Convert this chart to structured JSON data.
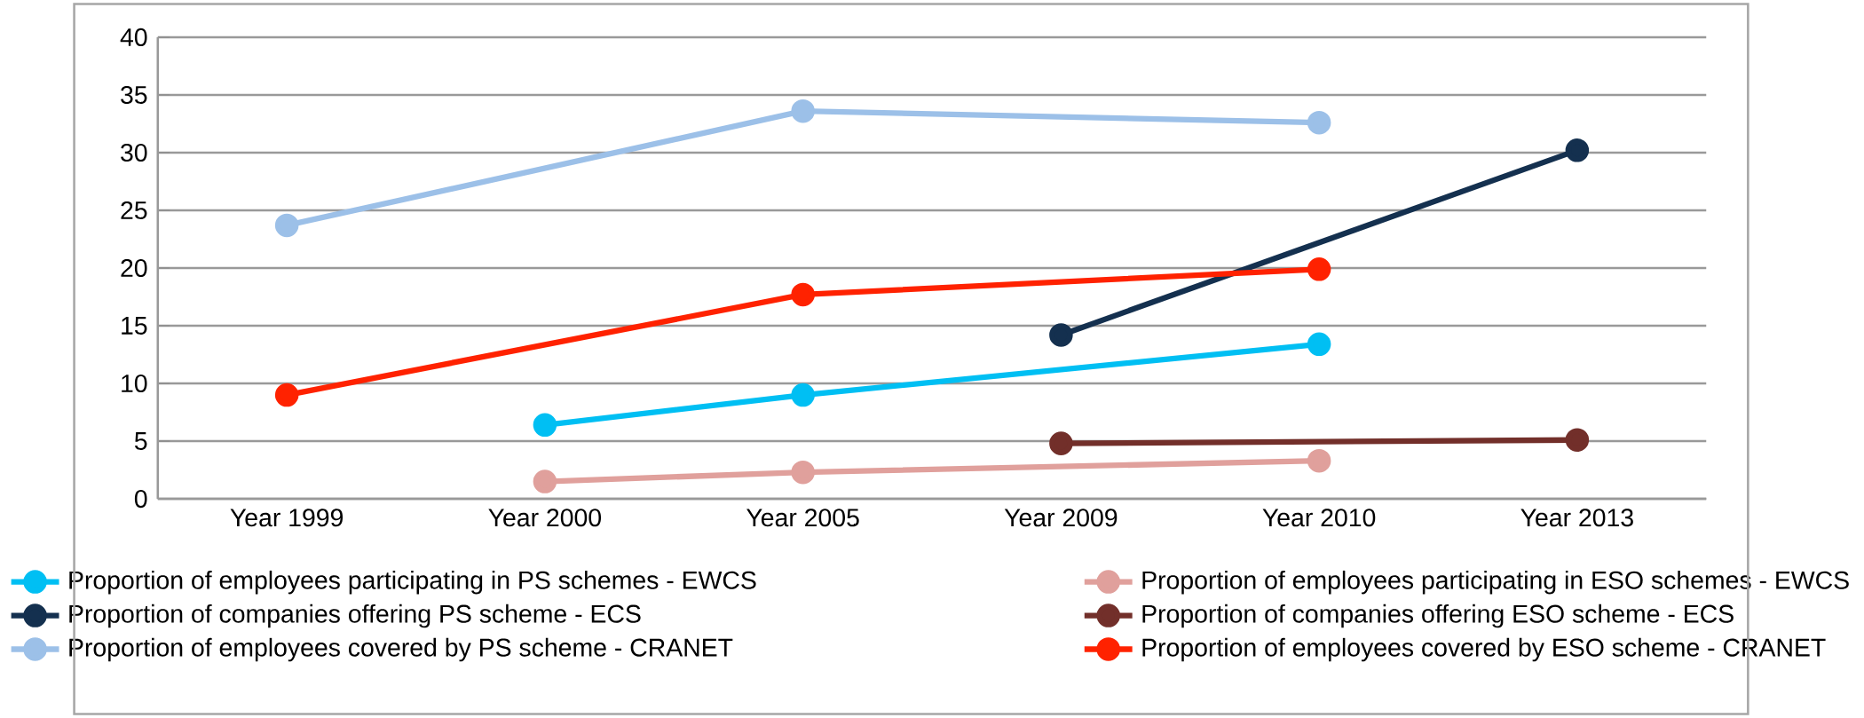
{
  "chart_data": {
    "type": "line",
    "categories": [
      "Year 1999",
      "Year 2000",
      "Year 2005",
      "Year 2009",
      "Year 2010",
      "Year 2013"
    ],
    "series": [
      {
        "name": "Proportion of employees participating in PS schemes - EWCS",
        "color": "#00bff3",
        "values": [
          null,
          6.4,
          9.0,
          null,
          13.4,
          null
        ]
      },
      {
        "name": "Proportion of employees participating in ESO schemes - EWCS",
        "color": "#e0a09c",
        "values": [
          null,
          1.5,
          2.3,
          null,
          3.3,
          null
        ]
      },
      {
        "name": "Proportion of companies offering PS scheme - ECS",
        "color": "#14304f",
        "values": [
          null,
          null,
          null,
          14.2,
          null,
          30.2
        ]
      },
      {
        "name": "Proportion of companies offering ESO scheme - ECS",
        "color": "#722f2a",
        "values": [
          null,
          null,
          null,
          4.8,
          null,
          5.1
        ]
      },
      {
        "name": "Proportion of employees covered by PS scheme - CRANET",
        "color": "#9cc0e8",
        "values": [
          23.7,
          null,
          33.6,
          null,
          32.6,
          null
        ]
      },
      {
        "name": "Proportion of employees covered by ESO scheme - CRANET",
        "color": "#ff2200",
        "values": [
          9.0,
          null,
          17.7,
          null,
          19.9,
          null
        ]
      }
    ],
    "ylim": [
      0,
      40
    ],
    "yticks": [
      0,
      5,
      10,
      15,
      20,
      25,
      30,
      35,
      40
    ],
    "grid": "y",
    "legend": "bottom",
    "marker": "circle",
    "line_style": "solid"
  }
}
